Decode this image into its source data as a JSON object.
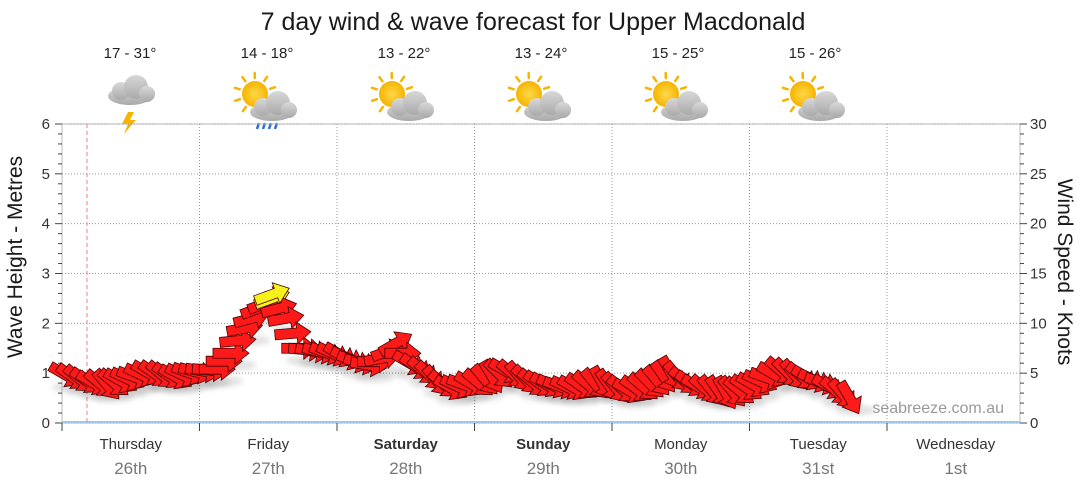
{
  "chart_data": {
    "type": "line",
    "title": "7 day wind & wave forecast for Upper Macdonald",
    "ylabel_left": "Wave Height - Metres",
    "ylabel_right": "Wind Speed - Knots",
    "y_left_ticks": [
      "0",
      "1",
      "2",
      "3",
      "4",
      "5",
      "6"
    ],
    "y_right_ticks": [
      "0",
      "5",
      "10",
      "15",
      "20",
      "25",
      "30"
    ],
    "ylim_left": [
      0,
      6
    ],
    "ylim_right": [
      0,
      30
    ],
    "grid": true,
    "watermark": "seabreeze.com.au",
    "days": [
      {
        "name": "Thursday",
        "date": "26th",
        "bold": false,
        "temp": "17 - 31°",
        "icon": "storm-cloud-icon"
      },
      {
        "name": "Friday",
        "date": "27th",
        "bold": false,
        "temp": "14 - 18°",
        "icon": "sun-rain-cloud-icon"
      },
      {
        "name": "Saturday",
        "date": "28th",
        "bold": true,
        "temp": "13 - 22°",
        "icon": "partly-cloudy-icon"
      },
      {
        "name": "Sunday",
        "date": "29th",
        "bold": true,
        "temp": "13 - 24°",
        "icon": "partly-cloudy-icon"
      },
      {
        "name": "Monday",
        "date": "30th",
        "bold": false,
        "temp": "15 - 25°",
        "icon": "partly-cloudy-icon"
      },
      {
        "name": "Tuesday",
        "date": "31st",
        "bold": false,
        "temp": "15 - 26°",
        "icon": "partly-cloudy-icon"
      },
      {
        "name": "Wednesday",
        "date": "1st",
        "bold": false,
        "temp": "",
        "icon": ""
      }
    ],
    "wind_series": {
      "name": "",
      "unit": "knots",
      "x_day_offset": [
        0.0,
        0.1,
        0.2,
        0.3,
        0.4,
        0.5,
        0.6,
        0.7,
        0.8,
        0.9,
        1.0,
        1.1,
        1.2,
        1.3,
        1.4,
        1.5,
        1.6,
        1.7,
        1.8,
        1.9,
        2.0,
        2.1,
        2.2,
        2.3,
        2.4,
        2.5,
        2.6,
        2.7,
        2.8,
        2.9,
        3.0,
        3.1,
        3.2,
        3.3,
        3.4,
        3.5,
        3.6,
        3.7,
        3.8,
        3.9,
        4.0,
        4.1,
        4.2,
        4.3,
        4.4,
        4.5,
        4.6,
        4.7,
        4.8,
        4.9,
        5.0,
        5.1,
        5.2,
        5.3,
        5.4,
        5.5,
        5.6,
        5.7
      ],
      "speed": [
        4.8,
        4.4,
        4.0,
        3.8,
        4.2,
        4.6,
        5.0,
        4.8,
        4.6,
        5.0,
        5.2,
        5.4,
        7.0,
        9.5,
        11.5,
        12.5,
        10.5,
        7.5,
        7.2,
        7.0,
        6.8,
        6.2,
        5.8,
        6.5,
        8.0,
        6.0,
        5.2,
        4.2,
        3.5,
        3.8,
        4.0,
        4.6,
        5.2,
        4.6,
        4.0,
        3.8,
        3.6,
        3.5,
        3.8,
        4.0,
        3.5,
        3.2,
        3.6,
        4.2,
        5.0,
        4.2,
        3.6,
        3.2,
        3.0,
        3.2,
        3.8,
        4.5,
        5.2,
        4.8,
        4.5,
        4.0,
        3.2,
        2.5
      ],
      "direction_deg": [
        300,
        310,
        300,
        320,
        300,
        290,
        300,
        310,
        300,
        290,
        280,
        270,
        270,
        260,
        250,
        250,
        260,
        270,
        280,
        290,
        300,
        290,
        280,
        260,
        240,
        300,
        310,
        320,
        300,
        290,
        310,
        330,
        300,
        320,
        310,
        300,
        290,
        300,
        310,
        330,
        320,
        300,
        310,
        320,
        330,
        310,
        300,
        320,
        330,
        310,
        300,
        290,
        310,
        320,
        300,
        290,
        310,
        330
      ],
      "highlight_index": 15
    }
  }
}
